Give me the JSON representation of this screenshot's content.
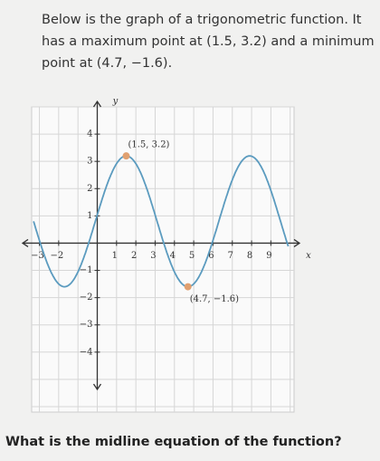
{
  "question": "Below is the graph of a trigonometric function. It has a maximum point at (1.5, 3.2) and a minimum point at (4.7, −1.6).",
  "graph": {
    "x_label": "x",
    "y_label": "y",
    "xlim": [
      -3.4,
      10.2
    ],
    "ylim": [
      -6.2,
      5
    ],
    "xticks": [
      {
        "value": -3,
        "label": "−3"
      },
      {
        "value": -2,
        "label": "−2"
      },
      1,
      2,
      3,
      4,
      5,
      6,
      7,
      8,
      9
    ],
    "yticks": [
      {
        "value": -4,
        "label": "−4"
      },
      {
        "value": -3,
        "label": "−3"
      },
      {
        "value": -2,
        "label": "−2"
      },
      {
        "value": -1,
        "label": "−1"
      },
      1,
      2,
      3,
      4
    ],
    "maximum": {
      "x": 1.5,
      "y": 3.2,
      "label": "(1.5, 3.2)"
    },
    "minimum": {
      "x": 4.7,
      "y": -1.6,
      "label": "(4.7, −1.6)"
    },
    "curve_color": "#5b9bbf",
    "point_color": "#e0a070"
  },
  "prompt": "What is the midline equation of the function?"
}
